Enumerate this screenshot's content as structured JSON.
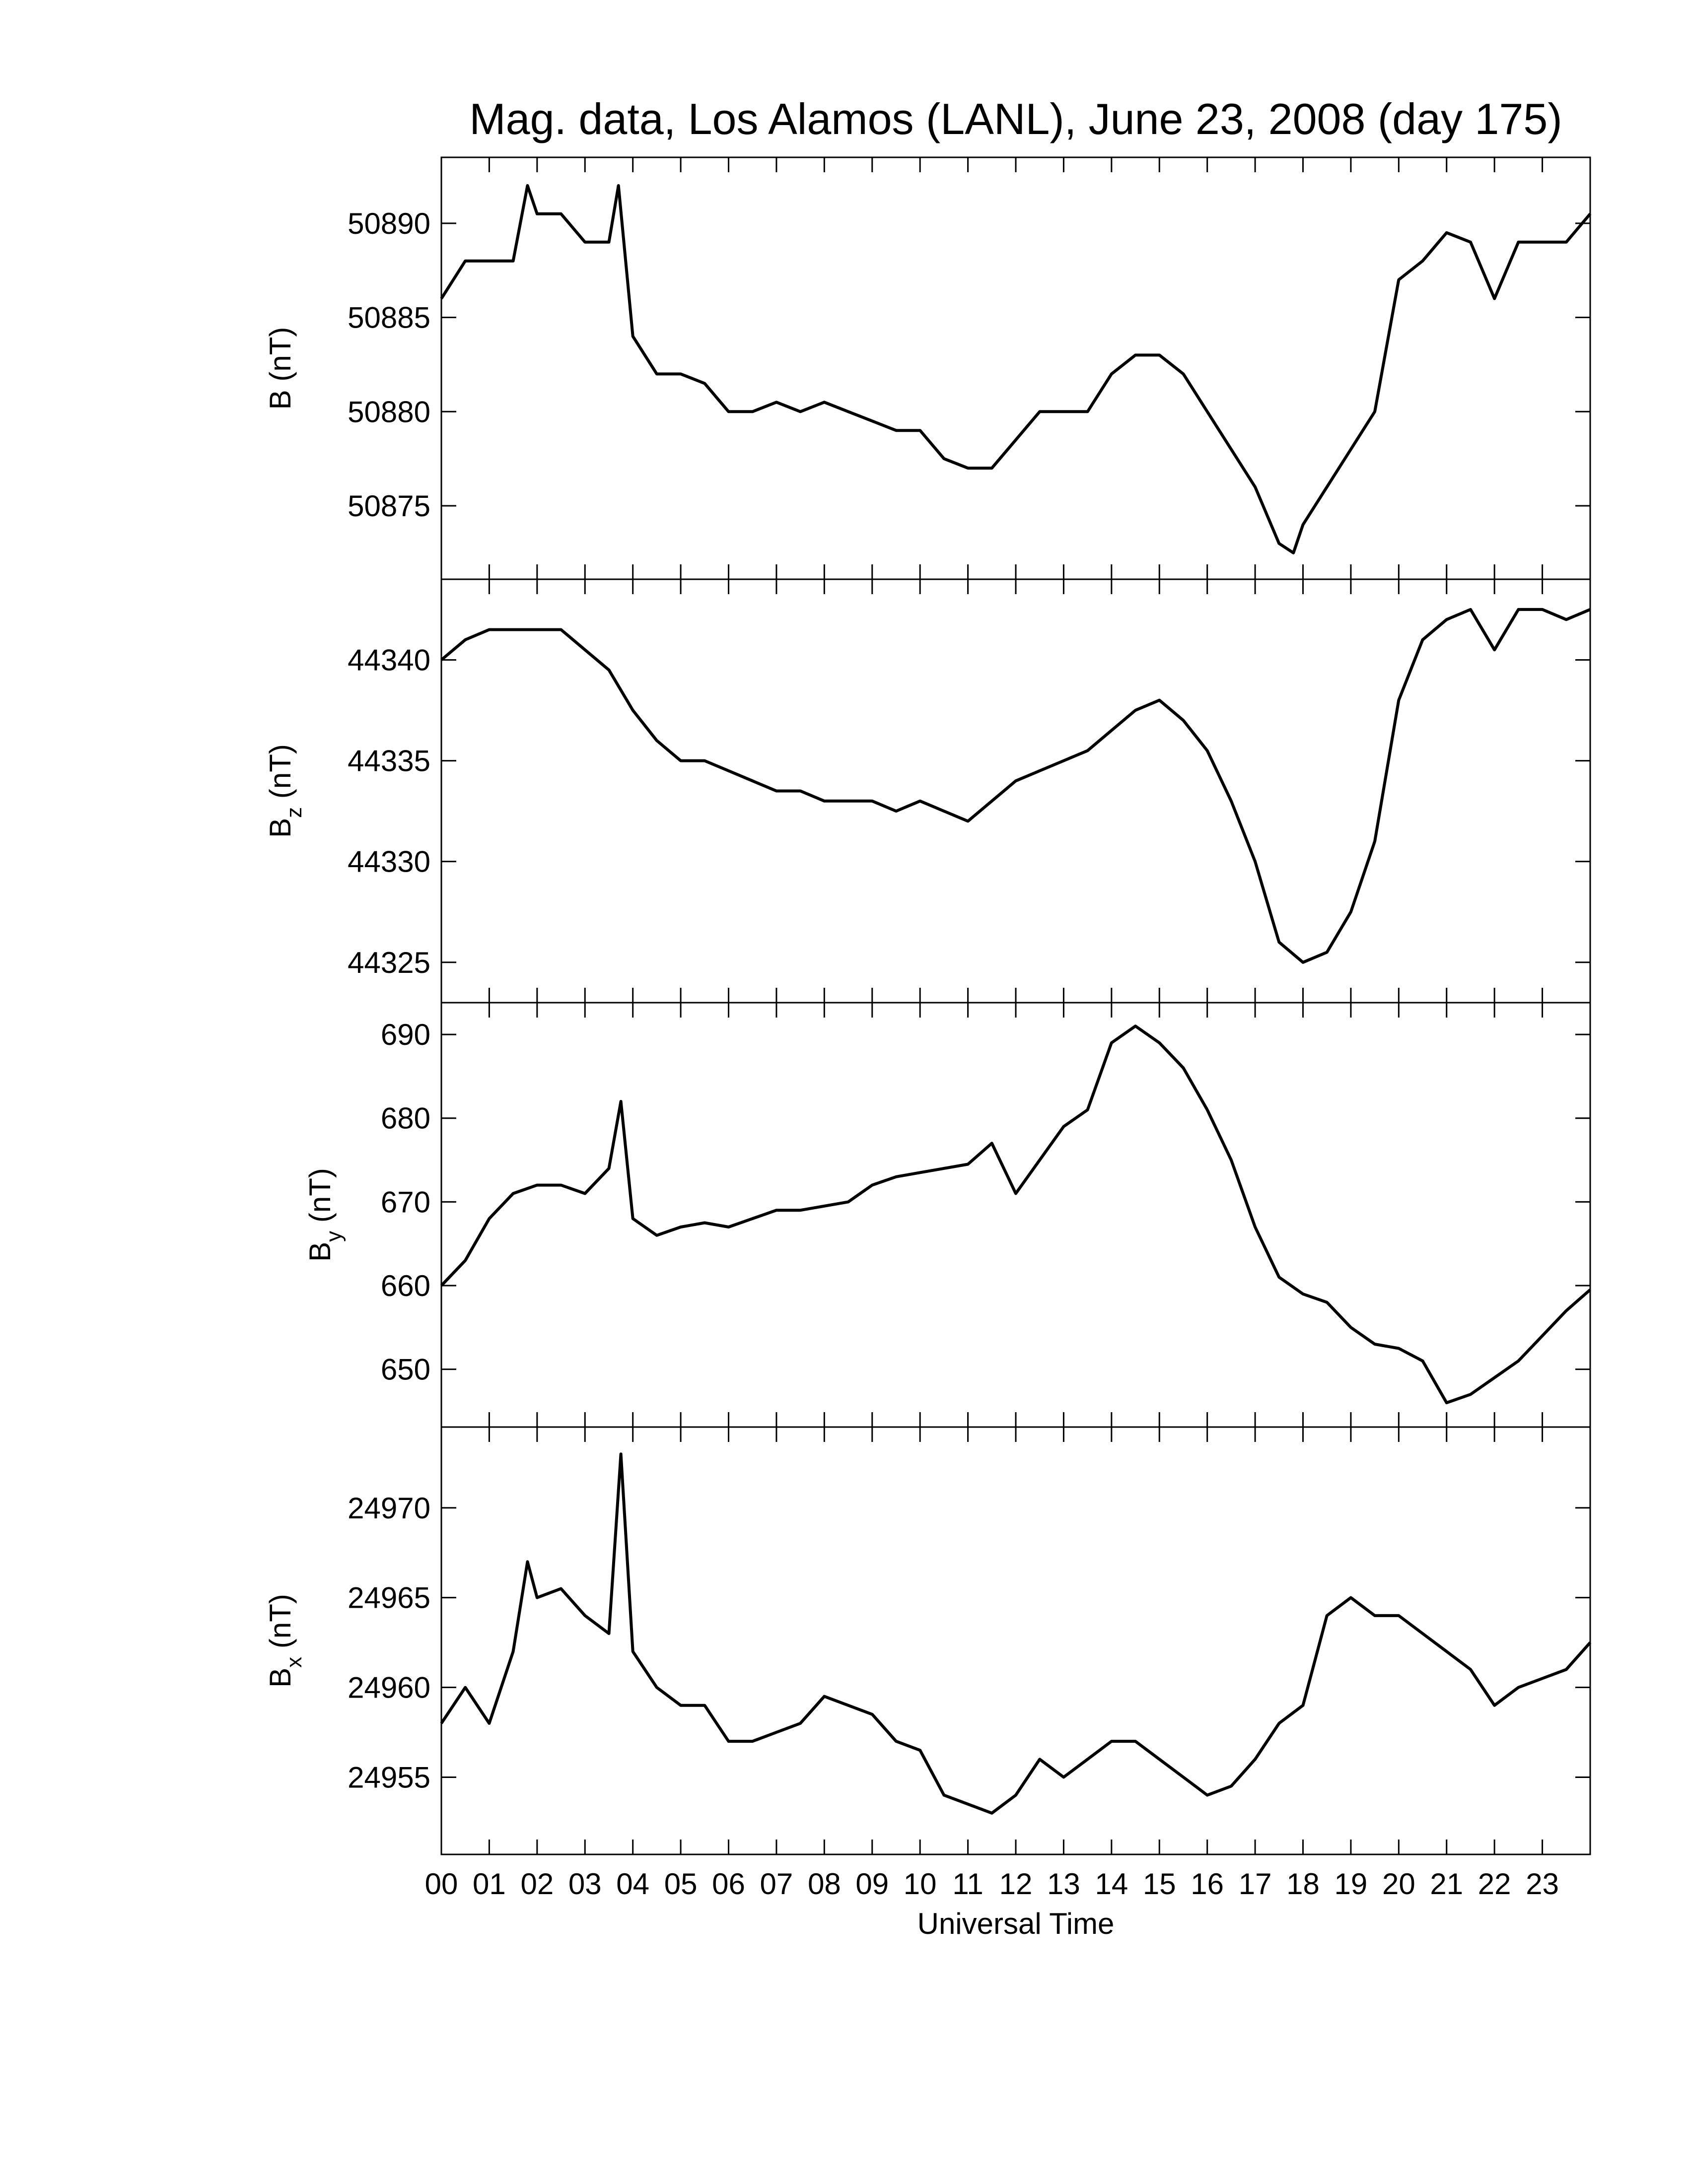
{
  "chart_data": [
    {
      "type": "line",
      "title": "Mag. data, Los Alamos (LANL), June 23, 2008 (day 175)",
      "ylabel": "B",
      "ylabel_unit": "(nT)",
      "color": "#000000",
      "xlim": [
        0,
        24
      ],
      "ylim": [
        50871.1,
        50893.5
      ],
      "yticks": [
        50875,
        50880,
        50885,
        50890
      ],
      "x": [
        0,
        0.5,
        1,
        1.5,
        1.8,
        2,
        2.5,
        3,
        3.5,
        3.7,
        4,
        4.5,
        5,
        5.5,
        6,
        6.5,
        7,
        7.5,
        8,
        8.5,
        9,
        9.5,
        10,
        10.5,
        11,
        11.5,
        12,
        12.5,
        13,
        13.5,
        14,
        14.5,
        15,
        15.5,
        16,
        16.5,
        17,
        17.5,
        17.8,
        18,
        18.5,
        19,
        19.5,
        20,
        20.5,
        21,
        21.5,
        22,
        22.5,
        23,
        23.5,
        24
      ],
      "values": [
        50886,
        50888,
        50888,
        50888,
        50892,
        50890.5,
        50890.5,
        50889,
        50889,
        50892,
        50884,
        50882,
        50882,
        50881.5,
        50880,
        50880,
        50880.5,
        50880,
        50880.5,
        50880,
        50879.5,
        50879,
        50879,
        50877.5,
        50877,
        50877,
        50878.5,
        50880,
        50880,
        50880,
        50882,
        50883,
        50883,
        50882,
        50880,
        50878,
        50876,
        50873,
        50872.5,
        50874,
        50876,
        50878,
        50880,
        50887,
        50888,
        50889.5,
        50889,
        50886,
        50889,
        50889,
        50889,
        50890.5
      ]
    },
    {
      "type": "line",
      "ylabel": "B",
      "ylabel_sub": "z",
      "ylabel_unit": "(nT)",
      "color": "#000000",
      "xlim": [
        0,
        24
      ],
      "ylim": [
        44323.0,
        44344.0
      ],
      "yticks": [
        44325,
        44330,
        44335,
        44340
      ],
      "x": [
        0,
        0.5,
        1,
        1.5,
        2,
        2.5,
        3,
        3.5,
        4,
        4.5,
        5,
        5.5,
        6,
        6.5,
        7,
        7.5,
        8,
        8.5,
        9,
        9.5,
        10,
        10.5,
        11,
        11.5,
        12,
        12.5,
        13,
        13.5,
        14,
        14.5,
        15,
        15.5,
        16,
        16.5,
        17,
        17.5,
        18,
        18.5,
        19,
        19.5,
        20,
        20.5,
        21,
        21.5,
        22,
        22.5,
        23,
        23.5,
        24
      ],
      "values": [
        44340,
        44341,
        44341.5,
        44341.5,
        44341.5,
        44341.5,
        44340.5,
        44339.5,
        44337.5,
        44336,
        44335,
        44335,
        44334.5,
        44334,
        44333.5,
        44333.5,
        44333,
        44333,
        44333,
        44332.5,
        44333,
        44332.5,
        44332,
        44333,
        44334,
        44334.5,
        44335,
        44335.5,
        44336.5,
        44337.5,
        44338,
        44337,
        44335.5,
        44333,
        44330,
        44326,
        44325,
        44325.5,
        44327.5,
        44331,
        44338,
        44341,
        44342,
        44342.5,
        44340.5,
        44342.5,
        44342.5,
        44342,
        44342.5
      ]
    },
    {
      "type": "line",
      "ylabel": "B",
      "ylabel_sub": "y",
      "ylabel_unit": "(nT)",
      "color": "#000000",
      "xlim": [
        0,
        24
      ],
      "ylim": [
        643.1,
        693.8
      ],
      "yticks": [
        650,
        660,
        670,
        680,
        690
      ],
      "x": [
        0,
        0.5,
        1,
        1.5,
        2,
        2.5,
        3,
        3.5,
        3.75,
        4,
        4.5,
        5,
        5.5,
        6,
        6.5,
        7,
        7.5,
        8,
        8.5,
        9,
        9.5,
        10,
        10.5,
        11,
        11.5,
        12,
        12.5,
        13,
        13.5,
        14,
        14.5,
        15,
        15.5,
        16,
        16.5,
        17,
        17.5,
        18,
        18.5,
        19,
        19.5,
        20,
        20.5,
        21,
        21.5,
        22,
        22.5,
        23,
        23.5,
        24
      ],
      "values": [
        660,
        663,
        668,
        671,
        672,
        672,
        671,
        674,
        682,
        668,
        666,
        667,
        667.5,
        667,
        668,
        669,
        669,
        669.5,
        670,
        672,
        673,
        673.5,
        674,
        674.5,
        677,
        671,
        675,
        679,
        681,
        689,
        691,
        689,
        686,
        681,
        675,
        667,
        661,
        659,
        658,
        655,
        653,
        652.5,
        651,
        646,
        647,
        649,
        651,
        654,
        657,
        659.5
      ]
    },
    {
      "type": "line",
      "ylabel": "B",
      "ylabel_sub": "x",
      "ylabel_unit": "(nT)",
      "xlabel": "Universal Time",
      "color": "#000000",
      "xlim": [
        0,
        24
      ],
      "ylim": [
        24950.7,
        24974.5
      ],
      "yticks": [
        24955,
        24960,
        24965,
        24970
      ],
      "xticks": [
        {
          "value": 0,
          "label": "00"
        },
        {
          "value": 1,
          "label": "01"
        },
        {
          "value": 2,
          "label": "02"
        },
        {
          "value": 3,
          "label": "03"
        },
        {
          "value": 4,
          "label": "04"
        },
        {
          "value": 5,
          "label": "05"
        },
        {
          "value": 6,
          "label": "06"
        },
        {
          "value": 7,
          "label": "07"
        },
        {
          "value": 8,
          "label": "08"
        },
        {
          "value": 9,
          "label": "09"
        },
        {
          "value": 10,
          "label": "10"
        },
        {
          "value": 11,
          "label": "11"
        },
        {
          "value": 12,
          "label": "12"
        },
        {
          "value": 13,
          "label": "13"
        },
        {
          "value": 14,
          "label": "14"
        },
        {
          "value": 15,
          "label": "15"
        },
        {
          "value": 16,
          "label": "16"
        },
        {
          "value": 17,
          "label": "17"
        },
        {
          "value": 18,
          "label": "18"
        },
        {
          "value": 19,
          "label": "19"
        },
        {
          "value": 20,
          "label": "20"
        },
        {
          "value": 21,
          "label": "21"
        },
        {
          "value": 22,
          "label": "22"
        },
        {
          "value": 23,
          "label": "23"
        }
      ],
      "x": [
        0,
        0.5,
        1,
        1.5,
        1.8,
        2,
        2.5,
        3,
        3.5,
        3.75,
        4,
        4.5,
        5,
        5.5,
        6,
        6.5,
        7,
        7.5,
        8,
        8.5,
        9,
        9.5,
        10,
        10.5,
        11,
        11.5,
        12,
        12.5,
        13,
        13.5,
        14,
        14.5,
        15,
        15.5,
        16,
        16.5,
        17,
        17.5,
        18,
        18.5,
        19,
        19.5,
        20,
        20.5,
        21,
        21.5,
        22,
        22.5,
        23,
        23.5,
        24
      ],
      "values": [
        24958,
        24960,
        24958,
        24962,
        24967,
        24965,
        24965.5,
        24964,
        24963,
        24973,
        24962,
        24960,
        24959,
        24959,
        24957,
        24957,
        24957.5,
        24958,
        24959.5,
        24959,
        24958.5,
        24957,
        24956.5,
        24954,
        24953.5,
        24953,
        24954,
        24956,
        24955,
        24956,
        24957,
        24957,
        24956,
        24955,
        24954,
        24954.5,
        24956,
        24958,
        24959,
        24964,
        24965,
        24964,
        24964,
        24963,
        24962,
        24961,
        24959,
        24960,
        24960.5,
        24961,
        24962.5
      ]
    }
  ]
}
